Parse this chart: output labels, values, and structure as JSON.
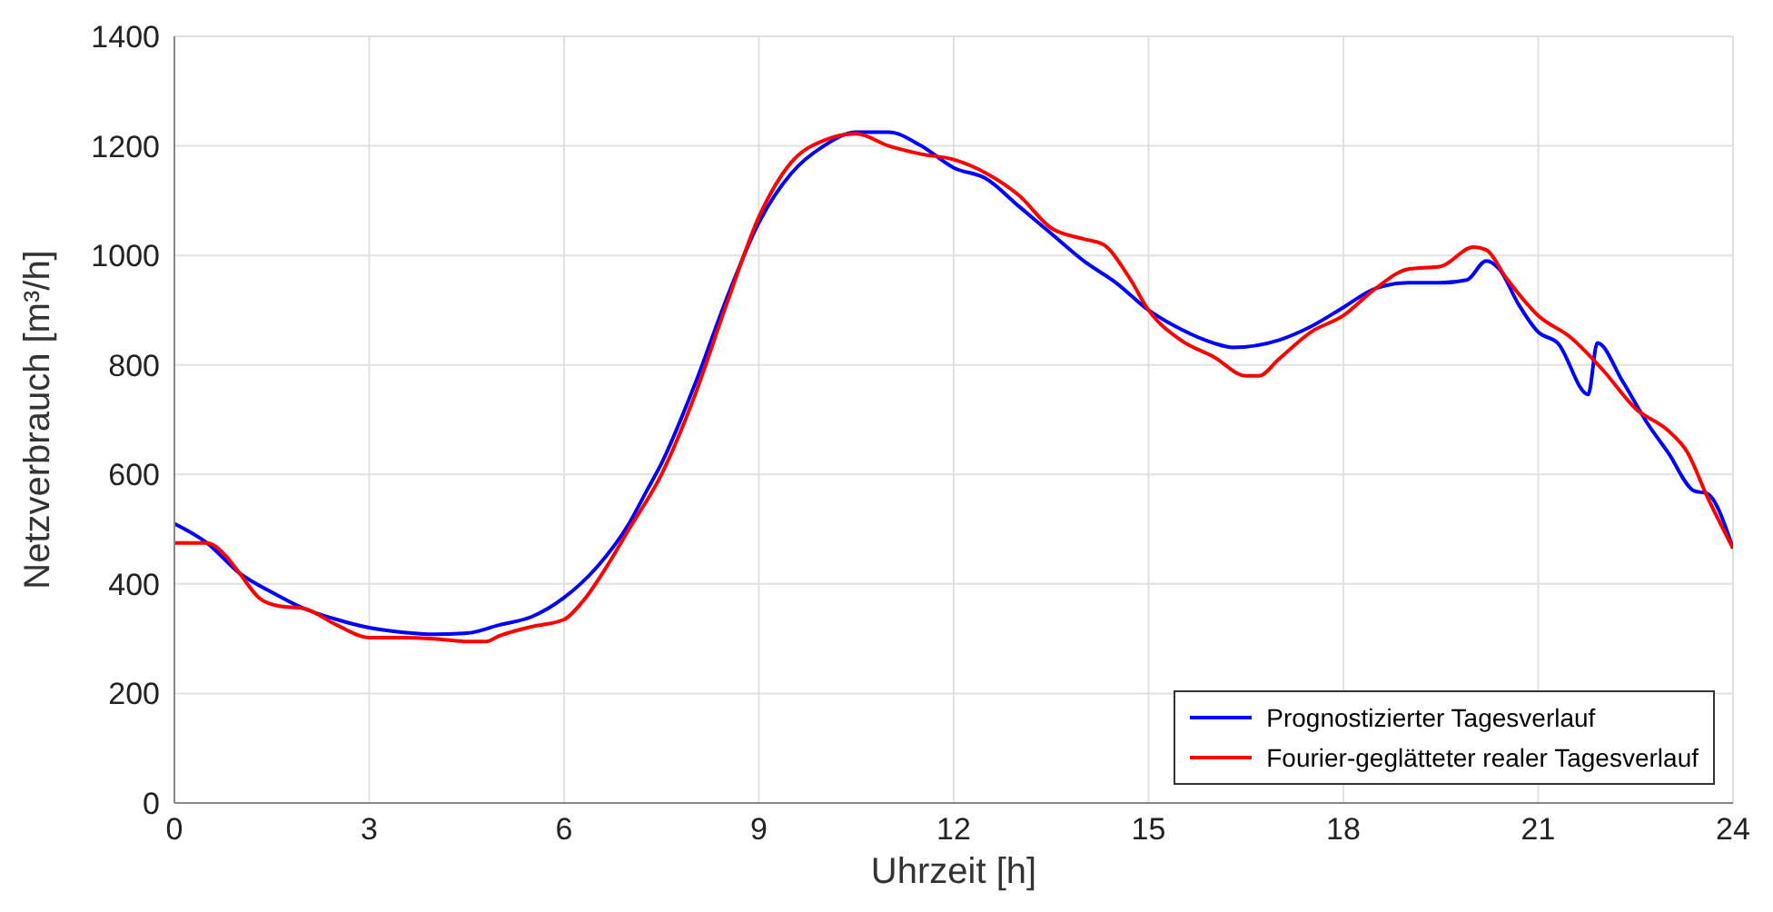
{
  "chart_data": {
    "type": "line",
    "xlabel": "Uhrzeit [h]",
    "ylabel": "Netzverbrauch [m³/h]",
    "xlim": [
      0,
      24
    ],
    "xticks": [
      0,
      3,
      6,
      9,
      12,
      15,
      18,
      21,
      24
    ],
    "ylim": [
      0,
      1400
    ],
    "yticks": [
      0,
      200,
      400,
      600,
      800,
      1000,
      1200,
      1400
    ],
    "grid": true,
    "legend": "bottom right",
    "marker": "none",
    "line_style": "solid",
    "series": [
      {
        "name": "Prognostizierter Tagesverlauf",
        "color": "#0000ff",
        "x": [
          0,
          0.5,
          1,
          1.5,
          2,
          2.5,
          3,
          3.5,
          4,
          4.5,
          5,
          5.5,
          6,
          6.5,
          7,
          7.25,
          7.5,
          8,
          8.5,
          9,
          9.5,
          10,
          10.5,
          11,
          11.5,
          12,
          12.5,
          13,
          13.5,
          14,
          14.5,
          15,
          15.5,
          16,
          16.3,
          17,
          17.5,
          18,
          18.5,
          19,
          19.5,
          19.9,
          20.2,
          20.4,
          20.7,
          21,
          21.3,
          21.77,
          21.91,
          22.3,
          22.7,
          23,
          23.4,
          23.6,
          24
        ],
        "values": [
          510,
          475,
          420,
          385,
          355,
          335,
          320,
          312,
          308,
          310,
          325,
          340,
          375,
          430,
          510,
          565,
          620,
          760,
          920,
          1060,
          1150,
          1200,
          1225,
          1225,
          1200,
          1160,
          1140,
          1090,
          1040,
          990,
          950,
          900,
          865,
          840,
          832,
          845,
          870,
          905,
          940,
          950,
          950,
          955,
          990,
          975,
          910,
          860,
          840,
          746,
          840,
          770,
          690,
          640,
          570,
          565,
          465
        ]
      },
      {
        "name": "Fourier-geglätteter realer Tagesverlauf",
        "color": "#ff0000",
        "x": [
          0,
          0.5,
          0.8,
          1,
          1.3,
          1.6,
          2,
          2.5,
          3,
          3.5,
          4,
          4.5,
          4.8,
          5,
          5.5,
          6,
          6.3,
          6.7,
          7,
          7.5,
          8,
          8.5,
          9,
          9.5,
          10,
          10.5,
          11,
          11.5,
          12,
          12.5,
          13,
          13.5,
          14,
          14.3,
          14.7,
          15,
          15.5,
          16,
          16.5,
          16.7,
          17,
          17.5,
          18,
          18.5,
          19,
          19.5,
          20,
          20.2,
          20.5,
          21,
          21.5,
          22,
          22.5,
          23,
          23.3,
          23.6,
          24
        ],
        "values": [
          475,
          475,
          450,
          420,
          375,
          360,
          355,
          325,
          302,
          302,
          300,
          295,
          295,
          305,
          322,
          335,
          370,
          440,
          500,
          600,
          740,
          910,
          1070,
          1170,
          1210,
          1222,
          1200,
          1185,
          1175,
          1150,
          1110,
          1050,
          1030,
          1020,
          960,
          900,
          845,
          815,
          780,
          780,
          810,
          860,
          890,
          940,
          975,
          980,
          1015,
          1010,
          960,
          890,
          850,
          790,
          720,
          680,
          640,
          560,
          465
        ]
      }
    ]
  }
}
